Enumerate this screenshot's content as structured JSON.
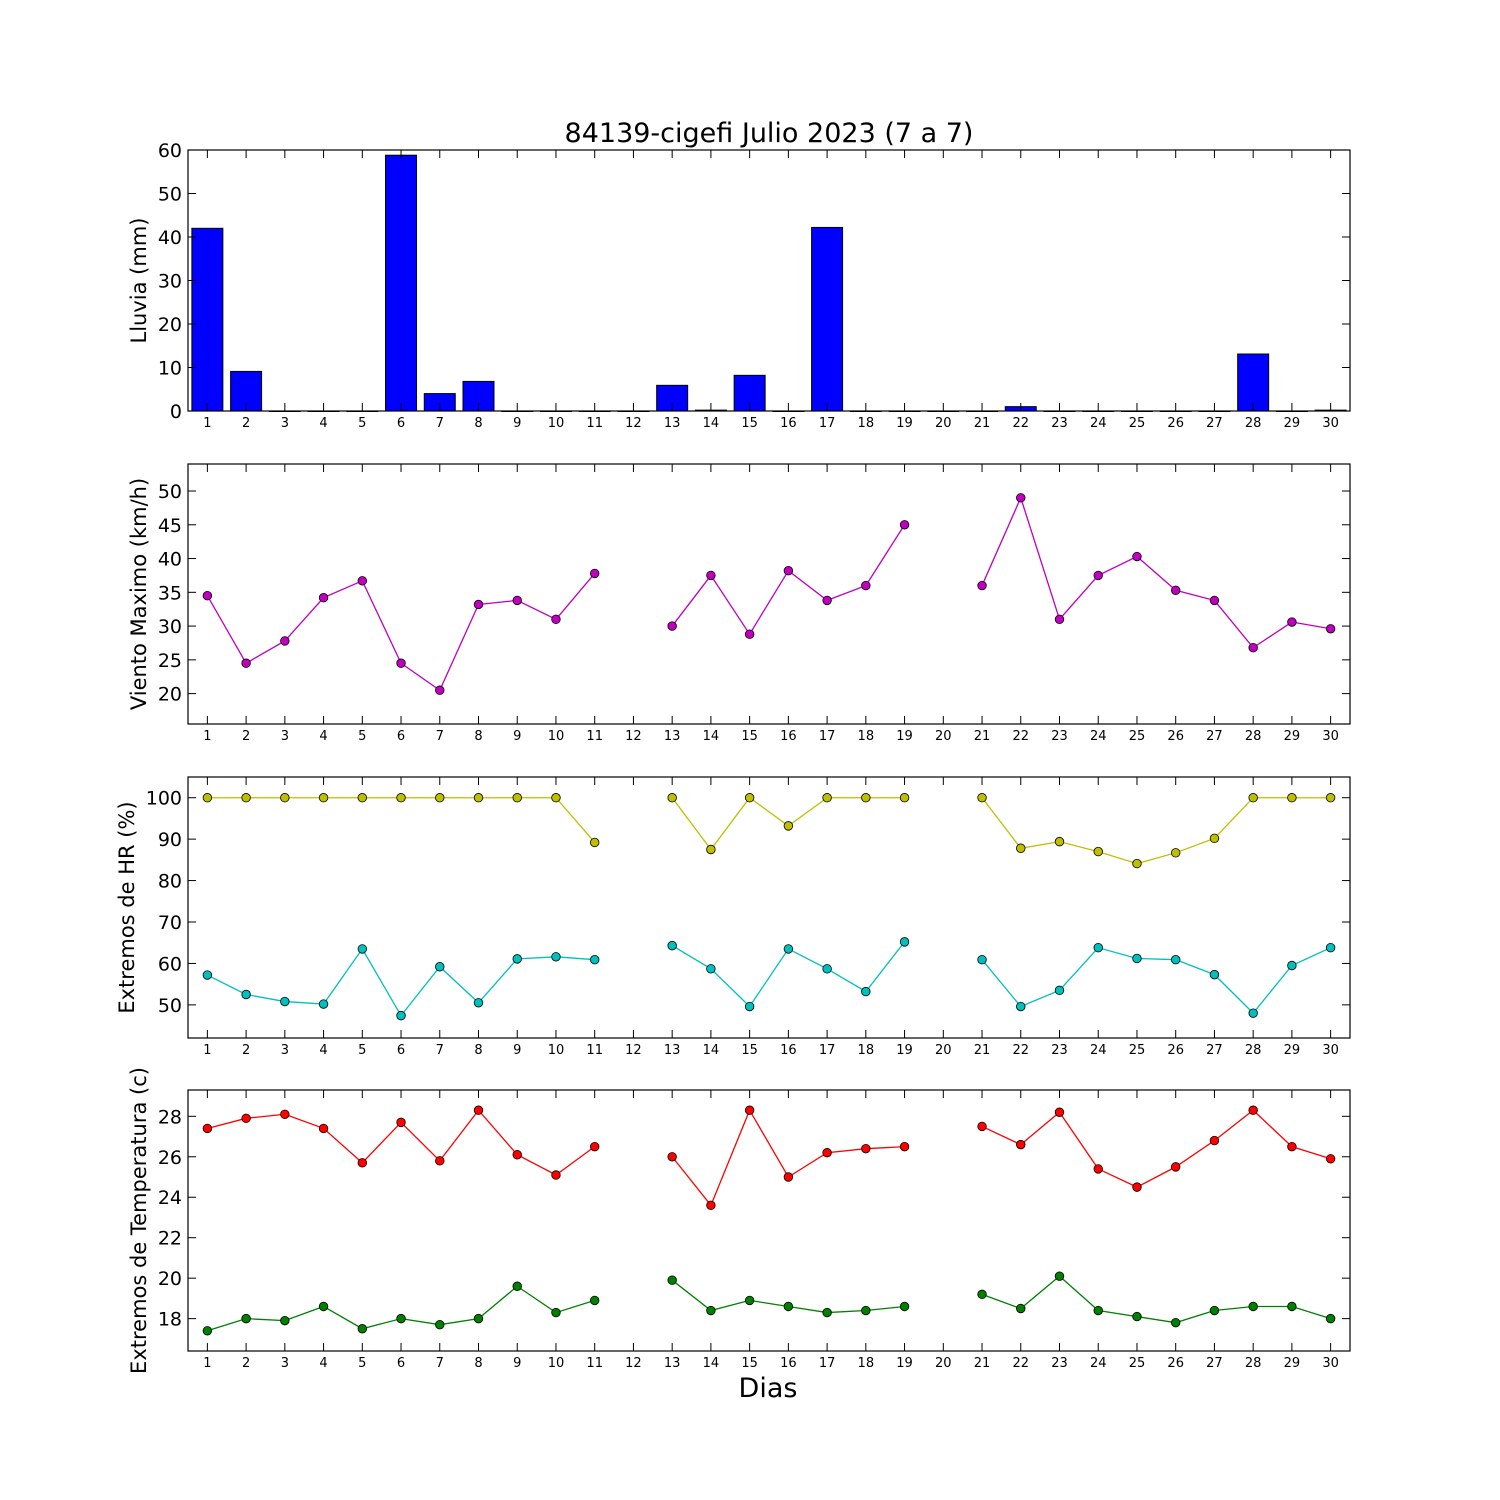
{
  "figure": {
    "title": "84139-cigefi Julio 2023  (7 a 7)",
    "xlabel": "Dias"
  },
  "chart_data": [
    {
      "type": "bar",
      "ylabel": "Lluvia (mm)",
      "ylim": [
        0,
        60
      ],
      "yticks": [
        0,
        10,
        20,
        30,
        40,
        50,
        60
      ],
      "categories": [
        1,
        2,
        3,
        4,
        5,
        6,
        7,
        8,
        9,
        10,
        11,
        12,
        13,
        14,
        15,
        16,
        17,
        18,
        19,
        20,
        21,
        22,
        23,
        24,
        25,
        26,
        27,
        28,
        29,
        30
      ],
      "series": [
        {
          "color": "#0000ff",
          "values": [
            42.0,
            9.1,
            0,
            0,
            0,
            58.8,
            4.0,
            6.8,
            0,
            0,
            0,
            0,
            5.9,
            0.2,
            8.2,
            0,
            42.2,
            0,
            0,
            0,
            0,
            1.0,
            0,
            0,
            0,
            0,
            0,
            13.1,
            0,
            0.2
          ]
        }
      ]
    },
    {
      "type": "line",
      "ylabel": "Viento Maximo (km/h)",
      "ylim": [
        15.5,
        54
      ],
      "yticks": [
        20,
        25,
        30,
        35,
        40,
        45,
        50
      ],
      "categories": [
        1,
        2,
        3,
        4,
        5,
        6,
        7,
        8,
        9,
        10,
        11,
        12,
        13,
        14,
        15,
        16,
        17,
        18,
        19,
        20,
        21,
        22,
        23,
        24,
        25,
        26,
        27,
        28,
        29,
        30
      ],
      "series": [
        {
          "color": "#bf00bf",
          "values": [
            34.5,
            24.5,
            27.8,
            34.2,
            36.7,
            24.5,
            20.5,
            33.2,
            33.8,
            31.0,
            37.8,
            null,
            30.0,
            37.5,
            28.8,
            38.2,
            33.8,
            36.0,
            45.0,
            null,
            36.0,
            49.0,
            31.0,
            37.5,
            40.3,
            35.3,
            33.8,
            26.8,
            30.6,
            29.6
          ]
        }
      ]
    },
    {
      "type": "line",
      "ylabel": "Extremos de HR (%)",
      "ylim": [
        42,
        105
      ],
      "yticks": [
        50,
        60,
        70,
        80,
        90,
        100
      ],
      "categories": [
        1,
        2,
        3,
        4,
        5,
        6,
        7,
        8,
        9,
        10,
        11,
        12,
        13,
        14,
        15,
        16,
        17,
        18,
        19,
        20,
        21,
        22,
        23,
        24,
        25,
        26,
        27,
        28,
        29,
        30
      ],
      "series": [
        {
          "color": "#bfbf00",
          "values": [
            100,
            100,
            100,
            100,
            100,
            100,
            100,
            100,
            100,
            100,
            89.2,
            null,
            100,
            87.5,
            100,
            93.2,
            100,
            100,
            100,
            null,
            100,
            87.8,
            89.4,
            87.0,
            84.1,
            86.7,
            90.2,
            100,
            100,
            100
          ]
        },
        {
          "color": "#00bfbf",
          "values": [
            57.2,
            52.5,
            50.8,
            50.2,
            63.5,
            47.4,
            59.2,
            50.5,
            61.1,
            61.6,
            60.9,
            null,
            64.3,
            58.7,
            49.6,
            63.5,
            58.7,
            53.2,
            65.2,
            null,
            60.9,
            49.6,
            53.5,
            63.8,
            61.2,
            60.9,
            57.3,
            48.0,
            59.5,
            63.8
          ]
        }
      ]
    },
    {
      "type": "line",
      "ylabel": "Extremos de Temperatura (c)",
      "ylim": [
        16.4,
        29.3
      ],
      "yticks": [
        18,
        20,
        22,
        24,
        26,
        28
      ],
      "categories": [
        1,
        2,
        3,
        4,
        5,
        6,
        7,
        8,
        9,
        10,
        11,
        12,
        13,
        14,
        15,
        16,
        17,
        18,
        19,
        20,
        21,
        22,
        23,
        24,
        25,
        26,
        27,
        28,
        29,
        30
      ],
      "series": [
        {
          "color": "#ff0000",
          "values": [
            27.4,
            27.9,
            28.1,
            27.4,
            25.7,
            27.7,
            25.8,
            28.3,
            26.1,
            25.1,
            26.5,
            null,
            26.0,
            23.6,
            28.3,
            25.0,
            26.2,
            26.4,
            26.5,
            null,
            27.5,
            26.6,
            28.2,
            25.4,
            24.5,
            25.5,
            26.8,
            28.3,
            26.5,
            25.9
          ]
        },
        {
          "color": "#008000",
          "values": [
            17.4,
            18.0,
            17.9,
            18.6,
            17.5,
            18.0,
            17.7,
            18.0,
            19.6,
            18.3,
            18.9,
            null,
            19.9,
            18.4,
            18.9,
            18.6,
            18.3,
            18.4,
            18.6,
            null,
            19.2,
            18.5,
            20.1,
            18.4,
            18.1,
            17.8,
            18.4,
            18.6,
            18.6,
            18.0
          ]
        }
      ]
    }
  ]
}
